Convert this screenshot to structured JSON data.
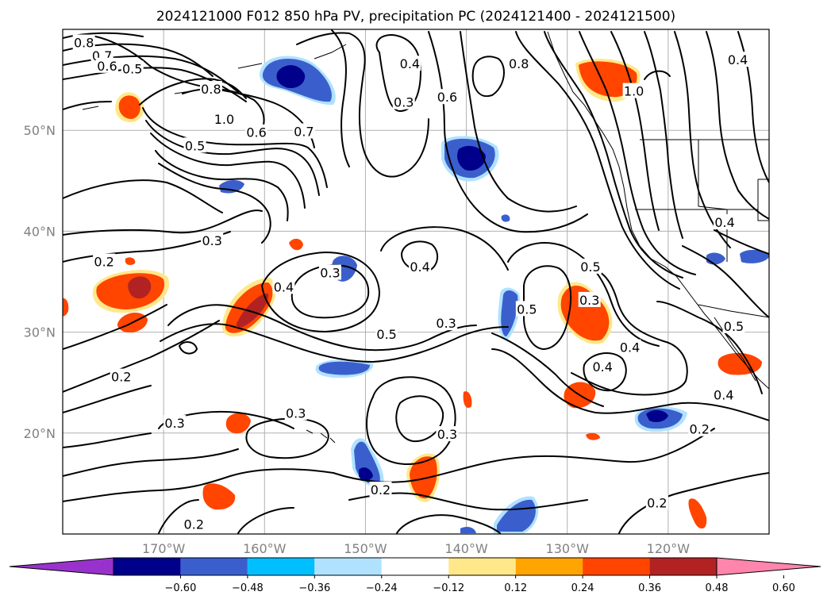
{
  "title": "2024121000 F012 850 hPa PV, precipitation PC (2024121400 - 2024121500)",
  "map": {
    "lon_range": [
      -180,
      -110
    ],
    "lat_range": [
      10,
      60
    ],
    "lon_grid": [
      -170,
      -160,
      -150,
      -140,
      -130,
      -120
    ],
    "lat_grid": [
      20,
      30,
      40,
      50
    ],
    "lon_labels": [
      "170°W",
      "160°W",
      "150°W",
      "140°W",
      "130°W",
      "120°W"
    ],
    "lat_labels": [
      "20°N",
      "30°N",
      "40°N",
      "50°N"
    ],
    "contour_labels": [
      {
        "text": "0.8",
        "lon": -177.9,
        "lat": 58.7
      },
      {
        "text": "0.7",
        "lon": -176.1,
        "lat": 57.4
      },
      {
        "text": "0.6",
        "lon": -175.6,
        "lat": 56.4
      },
      {
        "text": "0.5",
        "lon": -173.1,
        "lat": 56.1
      },
      {
        "text": "0.8",
        "lon": -165.3,
        "lat": 54.1
      },
      {
        "text": "1.0",
        "lon": -164.0,
        "lat": 51.1
      },
      {
        "text": "0.5",
        "lon": -166.9,
        "lat": 48.5
      },
      {
        "text": "0.6",
        "lon": -160.8,
        "lat": 49.8
      },
      {
        "text": "0.7",
        "lon": -156.1,
        "lat": 49.9
      },
      {
        "text": "0.4",
        "lon": -145.6,
        "lat": 56.6
      },
      {
        "text": "0.3",
        "lon": -146.2,
        "lat": 52.8
      },
      {
        "text": "0.6",
        "lon": -141.9,
        "lat": 53.3
      },
      {
        "text": "0.8",
        "lon": -134.8,
        "lat": 56.6
      },
      {
        "text": "1.0",
        "lon": -123.4,
        "lat": 53.9
      },
      {
        "text": "0.4",
        "lon": -113.1,
        "lat": 57.0
      },
      {
        "text": "0.3",
        "lon": -165.2,
        "lat": 39.1
      },
      {
        "text": "0.2",
        "lon": -175.9,
        "lat": 37.0
      },
      {
        "text": "0.4",
        "lon": -158.1,
        "lat": 34.5
      },
      {
        "text": "0.3",
        "lon": -153.5,
        "lat": 35.9
      },
      {
        "text": "0.4",
        "lon": -144.6,
        "lat": 36.5
      },
      {
        "text": "0.5",
        "lon": -147.9,
        "lat": 29.8
      },
      {
        "text": "0.3",
        "lon": -142.0,
        "lat": 30.9
      },
      {
        "text": "0.5",
        "lon": -134.0,
        "lat": 32.3
      },
      {
        "text": "0.3",
        "lon": -127.8,
        "lat": 33.2
      },
      {
        "text": "0.4",
        "lon": -123.8,
        "lat": 28.5
      },
      {
        "text": "0.4",
        "lon": -126.5,
        "lat": 26.6
      },
      {
        "text": "0.5",
        "lon": -127.7,
        "lat": 36.5
      },
      {
        "text": "0.4",
        "lon": -114.4,
        "lat": 40.9
      },
      {
        "text": "0.5",
        "lon": -113.5,
        "lat": 30.6
      },
      {
        "text": "0.4",
        "lon": -114.5,
        "lat": 23.8
      },
      {
        "text": "0.2",
        "lon": -174.2,
        "lat": 25.6
      },
      {
        "text": "0.3",
        "lon": -168.9,
        "lat": 21.0
      },
      {
        "text": "0.3",
        "lon": -156.9,
        "lat": 22.0
      },
      {
        "text": "0.3",
        "lon": -141.9,
        "lat": 19.9
      },
      {
        "text": "0.2",
        "lon": -148.5,
        "lat": 14.4
      },
      {
        "text": "0.2",
        "lon": -116.9,
        "lat": 20.4
      },
      {
        "text": "0.2",
        "lon": -121.1,
        "lat": 13.1
      },
      {
        "text": "0.2",
        "lon": -167.0,
        "lat": 11.0
      }
    ]
  },
  "colorbar": {
    "colors": [
      "#9932cc",
      "#00008b",
      "#3a5fcd",
      "#00bfff",
      "#b0e2ff",
      "#ffffff",
      "#ffe88a",
      "#ffa500",
      "#ff4500",
      "#b22222",
      "#ff85ad"
    ],
    "labels": [
      "−0.60",
      "−0.48",
      "−0.36",
      "−0.24",
      "−0.12",
      "0.12",
      "0.24",
      "0.36",
      "0.48",
      "0.60"
    ]
  }
}
